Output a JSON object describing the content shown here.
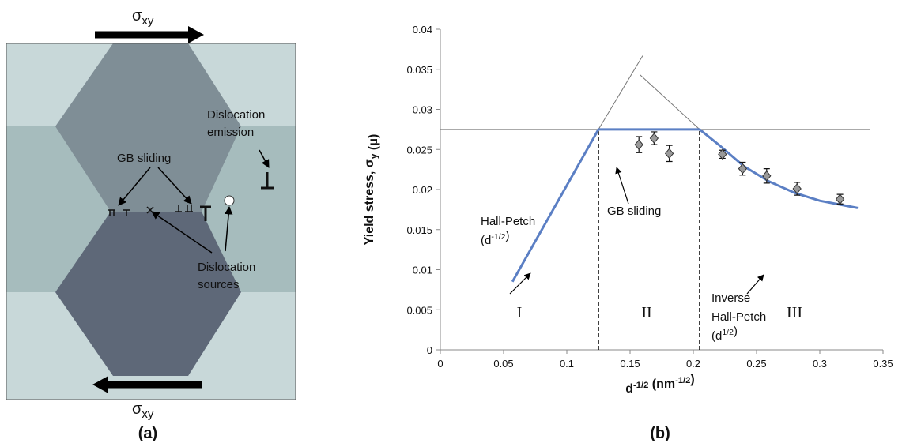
{
  "diagram": {
    "stress_top": [
      "σ",
      {
        "sub": "xy"
      }
    ],
    "stress_bottom": [
      "σ",
      {
        "sub": "xy"
      }
    ],
    "gb_sliding": "GB sliding",
    "emission": [
      "Dislocation",
      "emission"
    ],
    "sources": [
      "Dislocation",
      "sources"
    ],
    "panel_label": "(a)"
  },
  "chart_data": {
    "type": "line",
    "panel_label": "(b)",
    "xlabel": [
      "d",
      {
        "sup": "-1/2"
      },
      " (nm",
      {
        "sup": "-1/2"
      },
      ")"
    ],
    "ylabel": [
      "Yield stress, σ",
      {
        "sub": "y"
      },
      " (",
      "μ",
      ")"
    ],
    "xlim": [
      0,
      0.35
    ],
    "xticks": [
      0,
      0.05,
      0.1,
      0.15,
      0.2,
      0.25,
      0.3,
      0.35
    ],
    "ylim": [
      0,
      0.04
    ],
    "yticks": [
      0,
      0.005,
      0.01,
      0.015,
      0.02,
      0.025,
      0.03,
      0.035,
      0.04
    ],
    "series": [
      {
        "type": "line",
        "color": "#5b7fc4",
        "x": [
          0.057,
          0.125,
          0.205,
          0.22,
          0.24,
          0.26,
          0.28,
          0.3,
          0.33
        ],
        "values": [
          0.0085,
          0.0275,
          0.0275,
          0.0256,
          0.0229,
          0.021,
          0.0196,
          0.0186,
          0.0177
        ]
      },
      {
        "type": "scatter",
        "color": "#9a9a9a",
        "x": [
          0.157,
          0.169,
          0.181,
          0.223,
          0.239,
          0.258,
          0.282,
          0.316
        ],
        "values": [
          0.0256,
          0.0264,
          0.0245,
          0.0244,
          0.0226,
          0.0217,
          0.0201,
          0.0188
        ],
        "errors": [
          0.001,
          0.0008,
          0.001,
          0.0005,
          0.0008,
          0.0009,
          0.0008,
          0.0006
        ]
      }
    ],
    "guides": [
      {
        "x": [
          0,
          0.34
        ],
        "values": [
          0.0275,
          0.0275
        ]
      },
      {
        "x": [
          0.125,
          0.16
        ],
        "values": [
          0.0275,
          0.0367
        ]
      },
      {
        "x": [
          0.205,
          0.158
        ],
        "values": [
          0.0275,
          0.0343
        ]
      }
    ],
    "dividers": [
      0.125,
      0.205
    ],
    "divider_top": 0.0275,
    "regions": [
      "I",
      "II",
      "III"
    ],
    "annotations": [
      {
        "lines": [
          [
            "Hall-Petch"
          ],
          [
            "(d",
            {
              "sup": "-1/2"
            },
            ")"
          ]
        ]
      },
      {
        "lines": [
          [
            "GB sliding"
          ]
        ]
      },
      {
        "lines": [
          [
            "Inverse"
          ],
          [
            "Hall-Petch"
          ],
          [
            "(d",
            {
              "sup": "1/2"
            },
            ")"
          ]
        ]
      }
    ]
  }
}
